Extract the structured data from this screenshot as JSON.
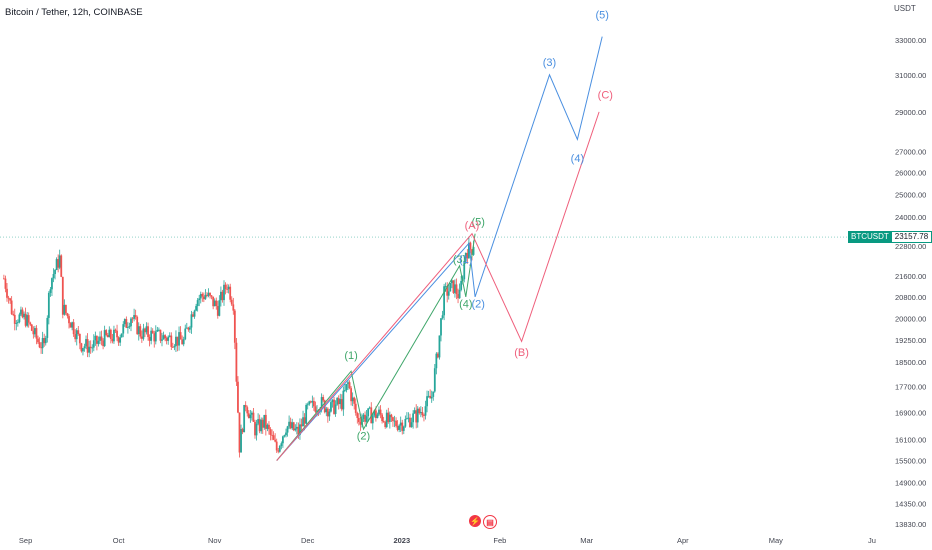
{
  "symbol_title": "Bitcoin / Tether, 12h, COINBASE",
  "currency": "USDT",
  "event_icons": [
    "lightning-icon",
    "us-flag-icon"
  ],
  "price_tag": {
    "symbol": "BTCUSDT",
    "value": "23157.78",
    "color": "#089981"
  },
  "colors": {
    "up": "#26a69a",
    "down": "#ef5350",
    "blue": "#4a8fe0",
    "green": "#3fa66a",
    "red": "#ef5f7c",
    "price_line": "#089981"
  },
  "chart_data": {
    "type": "candlestick",
    "x_ticks": [
      "Sep",
      "Oct",
      "Nov",
      "Dec",
      "2023",
      "Feb",
      "Mar",
      "Apr",
      "May",
      "Ju"
    ],
    "y_ticks": [
      "33000.00",
      "31000.00",
      "29000.00",
      "27000.00",
      "26000.00",
      "25000.00",
      "24000.00",
      "22800.00",
      "21600.00",
      "20800.00",
      "20000.00",
      "19250.00",
      "18500.00",
      "17700.00",
      "16900.00",
      "16100.00",
      "15500.00",
      "14900.00",
      "14350.00",
      "13830.00"
    ],
    "y_scale": "log",
    "last_price": 23157.78,
    "price_path": [
      [
        "2022-08-25",
        21500
      ],
      [
        "2022-08-28",
        20100
      ],
      [
        "2022-09-01",
        20000
      ],
      [
        "2022-09-05",
        19200
      ],
      [
        "2022-09-07",
        19000
      ],
      [
        "2022-09-09",
        21400
      ],
      [
        "2022-09-12",
        22300
      ],
      [
        "2022-09-13",
        20400
      ],
      [
        "2022-09-16",
        19800
      ],
      [
        "2022-09-19",
        19100
      ],
      [
        "2022-09-22",
        19000
      ],
      [
        "2022-09-26",
        19300
      ],
      [
        "2022-10-01",
        19400
      ],
      [
        "2022-10-05",
        20100
      ],
      [
        "2022-10-08",
        19500
      ],
      [
        "2022-10-13",
        19400
      ],
      [
        "2022-10-18",
        19300
      ],
      [
        "2022-10-22",
        19200
      ],
      [
        "2022-10-26",
        20700
      ],
      [
        "2022-10-29",
        20900
      ],
      [
        "2022-11-02",
        20400
      ],
      [
        "2022-11-05",
        21300
      ],
      [
        "2022-11-07",
        20600
      ],
      [
        "2022-11-08",
        18000
      ],
      [
        "2022-11-09",
        15900
      ],
      [
        "2022-11-11",
        17200
      ],
      [
        "2022-11-14",
        16400
      ],
      [
        "2022-11-17",
        16600
      ],
      [
        "2022-11-21",
        15800
      ],
      [
        "2022-11-24",
        16500
      ],
      [
        "2022-11-28",
        16300
      ],
      [
        "2022-12-01",
        17000
      ],
      [
        "2022-12-05",
        17200
      ],
      [
        "2022-12-08",
        17000
      ],
      [
        "2022-12-12",
        17200
      ],
      [
        "2022-12-14",
        17800
      ],
      [
        "2022-12-17",
        16700
      ],
      [
        "2022-12-20",
        16800
      ],
      [
        "2022-12-24",
        16850
      ],
      [
        "2022-12-28",
        16550
      ],
      [
        "2023-01-01",
        16600
      ],
      [
        "2023-01-05",
        16800
      ],
      [
        "2023-01-08",
        17100
      ],
      [
        "2023-01-10",
        17400
      ],
      [
        "2023-01-12",
        18900
      ],
      [
        "2023-01-14",
        20900
      ],
      [
        "2023-01-17",
        21200
      ],
      [
        "2023-01-19",
        20800
      ],
      [
        "2023-01-21",
        22600
      ],
      [
        "2023-01-23",
        22700
      ],
      [
        "2023-01-24",
        23157.78
      ]
    ],
    "projections": [
      {
        "name": "blue-count",
        "color": "#4a8fe0",
        "points": [
          [
            "2022-11-21",
            15500
          ],
          [
            "2023-01-22",
            22900
          ],
          [
            "2023-01-24",
            20800
          ],
          [
            "2023-02-17",
            31000
          ],
          [
            "2023-02-26",
            27600
          ],
          [
            "2023-03-06",
            33200
          ]
        ]
      },
      {
        "name": "green-count",
        "color": "#3fa66a",
        "points": [
          [
            "2022-11-21",
            15500
          ],
          [
            "2022-12-15",
            18200
          ],
          [
            "2022-12-19",
            16400
          ],
          [
            "2023-01-19",
            22000
          ],
          [
            "2023-01-21",
            20800
          ],
          [
            "2023-01-24",
            23300
          ]
        ]
      },
      {
        "name": "red-count",
        "color": "#ef5f7c",
        "points": [
          [
            "2022-11-21",
            15500
          ],
          [
            "2023-01-23",
            23300
          ],
          [
            "2023-02-08",
            19200
          ],
          [
            "2023-03-05",
            29000
          ]
        ]
      }
    ],
    "labels": [
      {
        "text": "(1)",
        "color": "#3fa66a",
        "x": "2022-12-15",
        "y": 18600
      },
      {
        "text": "(2)",
        "color": "#3fa66a",
        "x": "2022-12-19",
        "y": 16100
      },
      {
        "text": "(3)",
        "color": "#3fa66a",
        "x": "2023-01-19",
        "y": 22100
      },
      {
        "text": "(4)",
        "color": "#3fa66a",
        "x": "2023-01-21",
        "y": 20400
      },
      {
        "text": "(5)",
        "color": "#3fa66a",
        "x": "2023-01-25",
        "y": 23650
      },
      {
        "text": "(1)",
        "color": "#4a8fe0",
        "x": "2023-01-21",
        "y": 22100
      },
      {
        "text": "(2)",
        "color": "#4a8fe0",
        "x": "2023-01-25",
        "y": 20400
      },
      {
        "text": "(3)",
        "color": "#4a8fe0",
        "x": "2023-02-17",
        "y": 31500
      },
      {
        "text": "(4)",
        "color": "#4a8fe0",
        "x": "2023-02-26",
        "y": 26500
      },
      {
        "text": "(5)",
        "color": "#4a8fe0",
        "x": "2023-03-06",
        "y": 34300
      },
      {
        "text": "(A)",
        "color": "#ef5f7c",
        "x": "2023-01-23",
        "y": 23500
      },
      {
        "text": "(B)",
        "color": "#ef5f7c",
        "x": "2023-02-08",
        "y": 18700
      },
      {
        "text": "(C)",
        "color": "#ef5f7c",
        "x": "2023-03-07",
        "y": 29700
      }
    ]
  }
}
